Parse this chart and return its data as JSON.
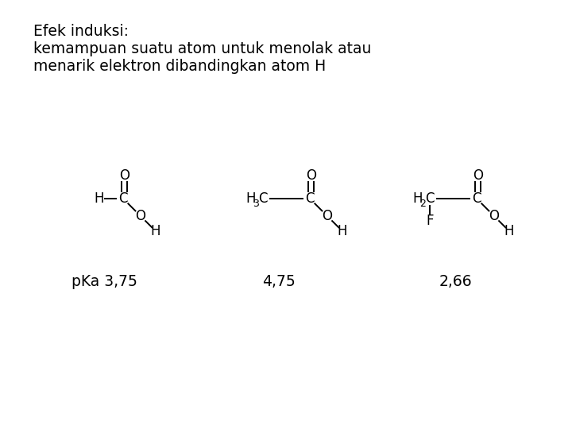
{
  "title_line1": "Efek induksi:",
  "title_line2": "kemampuan suatu atom untuk menolak atau",
  "title_line3": "menarik elektron dibandingkan atom H",
  "bg_color": "#ffffff",
  "text_color": "#000000",
  "font_family": "DejaVu Sans",
  "title_fontsize": 13.5,
  "structure_fontsize": 12,
  "pka_fontsize": 13.5,
  "sub_fontsize": 9,
  "fig_width": 7.2,
  "fig_height": 5.4,
  "fig_dpi": 100
}
